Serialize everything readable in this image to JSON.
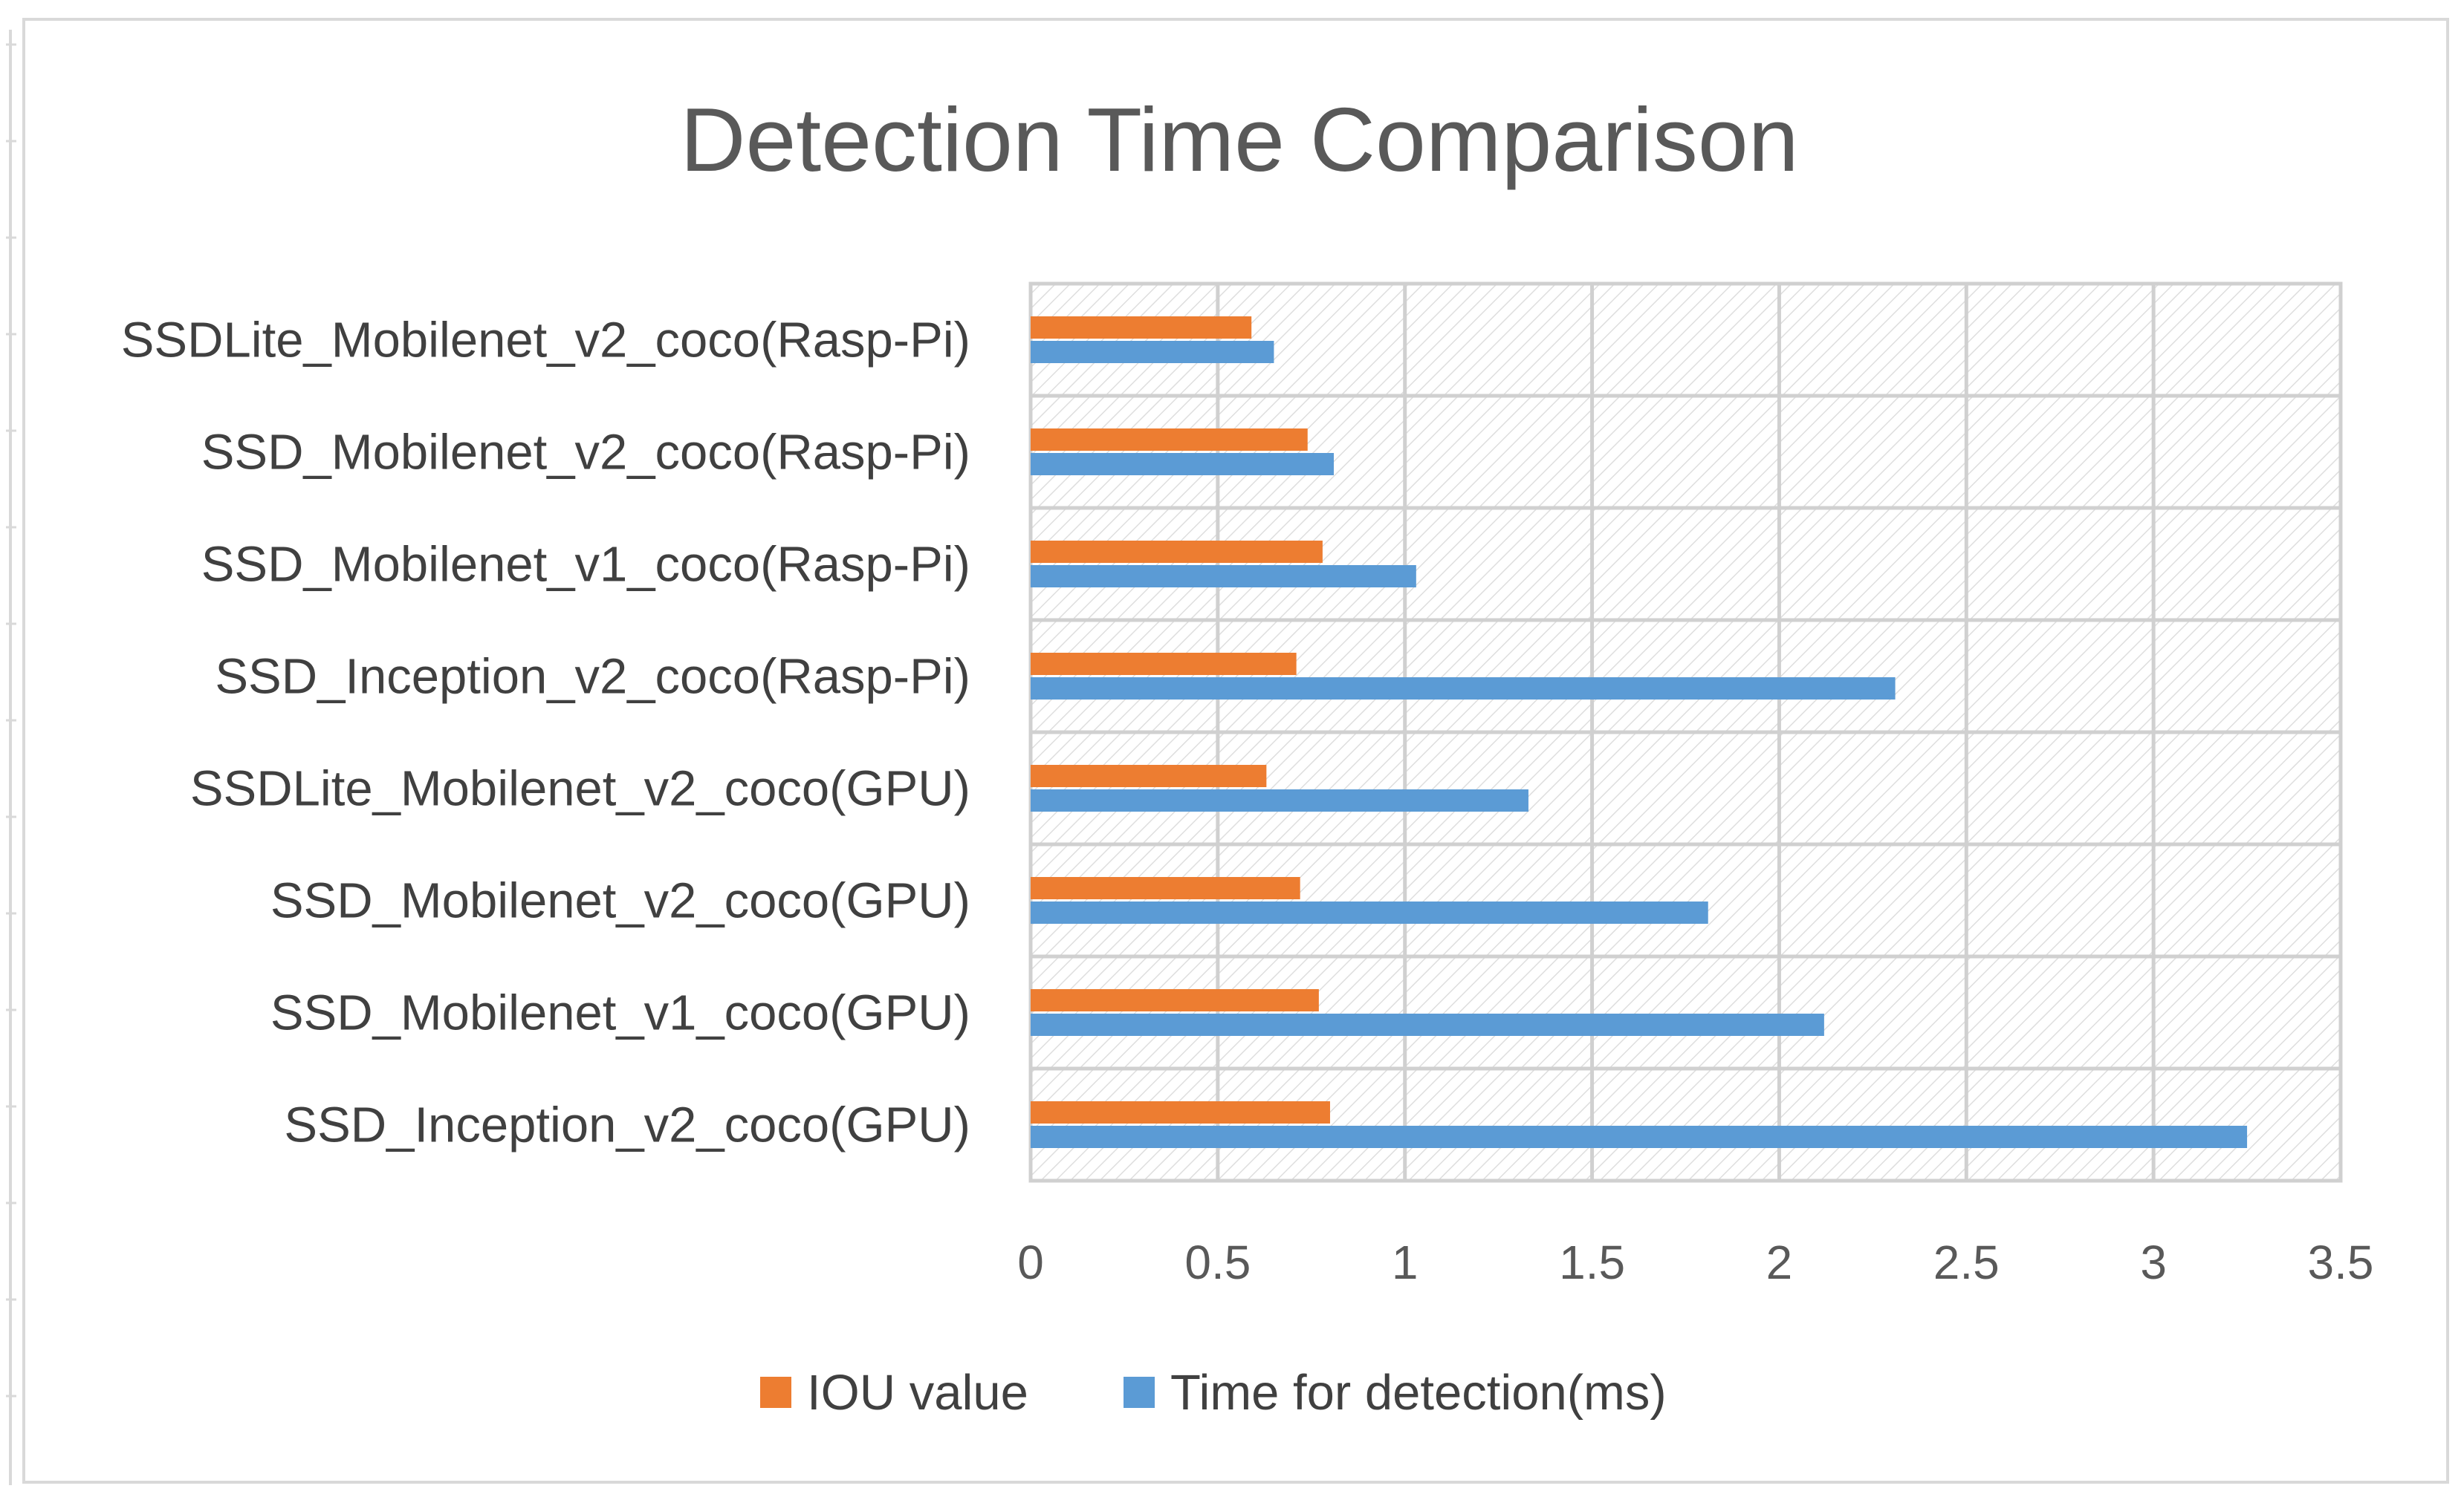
{
  "chart_data": {
    "type": "bar",
    "orientation": "horizontal",
    "title": "Detection Time Comparison",
    "xlabel": "",
    "ylabel": "",
    "xlim": [
      0,
      3.5
    ],
    "xticks": [
      "0",
      "0.5",
      "1",
      "1.5",
      "2",
      "2.5",
      "3",
      "3.5"
    ],
    "grid": true,
    "legend_position": "bottom",
    "categories": [
      "SSDLite_Mobilenet_v2_coco(Rasp-Pi)",
      "SSD_Mobilenet_v2_coco(Rasp-Pi)",
      "SSD_Mobilenet_v1_coco(Rasp-Pi)",
      "SSD_Inception_v2_coco(Rasp-Pi)",
      "SSDLite_Mobilenet_v2_coco(GPU)",
      "SSD_Mobilenet_v2_coco(GPU)",
      "SSD_Mobilenet_v1_coco(GPU)",
      "SSD_Inception_v2_coco(GPU)"
    ],
    "series": [
      {
        "name": "IOU value",
        "color": "#ed7d31",
        "values": [
          0.59,
          0.74,
          0.78,
          0.71,
          0.63,
          0.72,
          0.77,
          0.8
        ]
      },
      {
        "name": "Time for detection(ms)",
        "color": "#5b9bd5",
        "values": [
          0.65,
          0.81,
          1.03,
          2.31,
          1.33,
          1.81,
          2.12,
          3.25
        ]
      }
    ]
  }
}
